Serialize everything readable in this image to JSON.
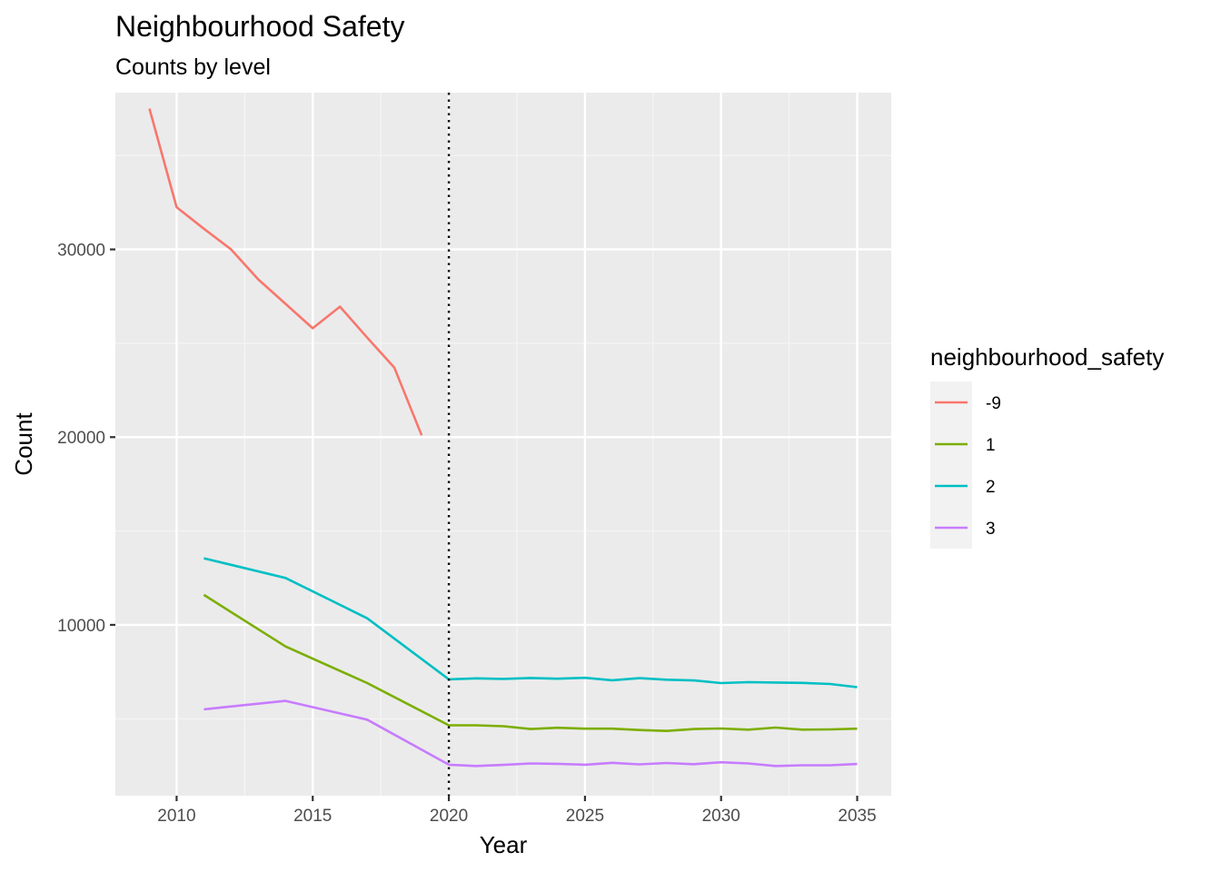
{
  "chart_data": {
    "type": "line",
    "title": "Neighbourhood Safety",
    "subtitle": "Counts by level",
    "xlabel": "Year",
    "ylabel": "Count",
    "xlim": [
      2007.75,
      2036.25
    ],
    "ylim": [
      900,
      38350
    ],
    "x_ticks": [
      2010,
      2015,
      2020,
      2025,
      2030,
      2035
    ],
    "x_minor_ticks": [
      2012.5,
      2017.5,
      2022.5,
      2027.5,
      2032.5
    ],
    "y_ticks": [
      10000,
      20000,
      30000
    ],
    "y_minor_ticks": [
      5000,
      15000,
      25000,
      35000
    ],
    "grid": true,
    "vline": {
      "x": 2020,
      "style": "dotted"
    },
    "legend": {
      "title": "neighbourhood_safety",
      "position": "right"
    },
    "series": [
      {
        "name": "-9",
        "color": "#F8766D",
        "x": [
          2009,
          2010,
          2011,
          2012,
          2013,
          2014,
          2015,
          2016,
          2017,
          2018,
          2019
        ],
        "values": [
          37500,
          32250,
          31100,
          30000,
          28400,
          27100,
          25800,
          26950,
          25300,
          23700,
          20100
        ]
      },
      {
        "name": "1",
        "color": "#7CAE00",
        "x": [
          2011,
          2014,
          2017,
          2020,
          2021,
          2022,
          2023,
          2024,
          2025,
          2026,
          2027,
          2028,
          2029,
          2030,
          2031,
          2032,
          2033,
          2034,
          2035
        ],
        "values": [
          11600,
          8850,
          6900,
          4650,
          4650,
          4600,
          4450,
          4520,
          4470,
          4470,
          4400,
          4350,
          4450,
          4480,
          4420,
          4530,
          4420,
          4430,
          4470
        ]
      },
      {
        "name": "2",
        "color": "#00BFC4",
        "x": [
          2011,
          2014,
          2017,
          2020,
          2021,
          2022,
          2023,
          2024,
          2025,
          2026,
          2027,
          2028,
          2029,
          2030,
          2031,
          2032,
          2033,
          2034,
          2035
        ],
        "values": [
          13550,
          12500,
          10350,
          7100,
          7150,
          7120,
          7170,
          7130,
          7180,
          7050,
          7160,
          7080,
          7040,
          6900,
          6950,
          6930,
          6910,
          6850,
          6680
        ]
      },
      {
        "name": "3",
        "color": "#C77CFF",
        "x": [
          2011,
          2014,
          2017,
          2020,
          2021,
          2022,
          2023,
          2024,
          2025,
          2026,
          2027,
          2028,
          2029,
          2030,
          2031,
          2032,
          2033,
          2034,
          2035
        ],
        "values": [
          5500,
          5950,
          4950,
          2550,
          2480,
          2540,
          2620,
          2600,
          2550,
          2650,
          2570,
          2640,
          2580,
          2680,
          2620,
          2480,
          2520,
          2520,
          2590
        ]
      }
    ]
  }
}
